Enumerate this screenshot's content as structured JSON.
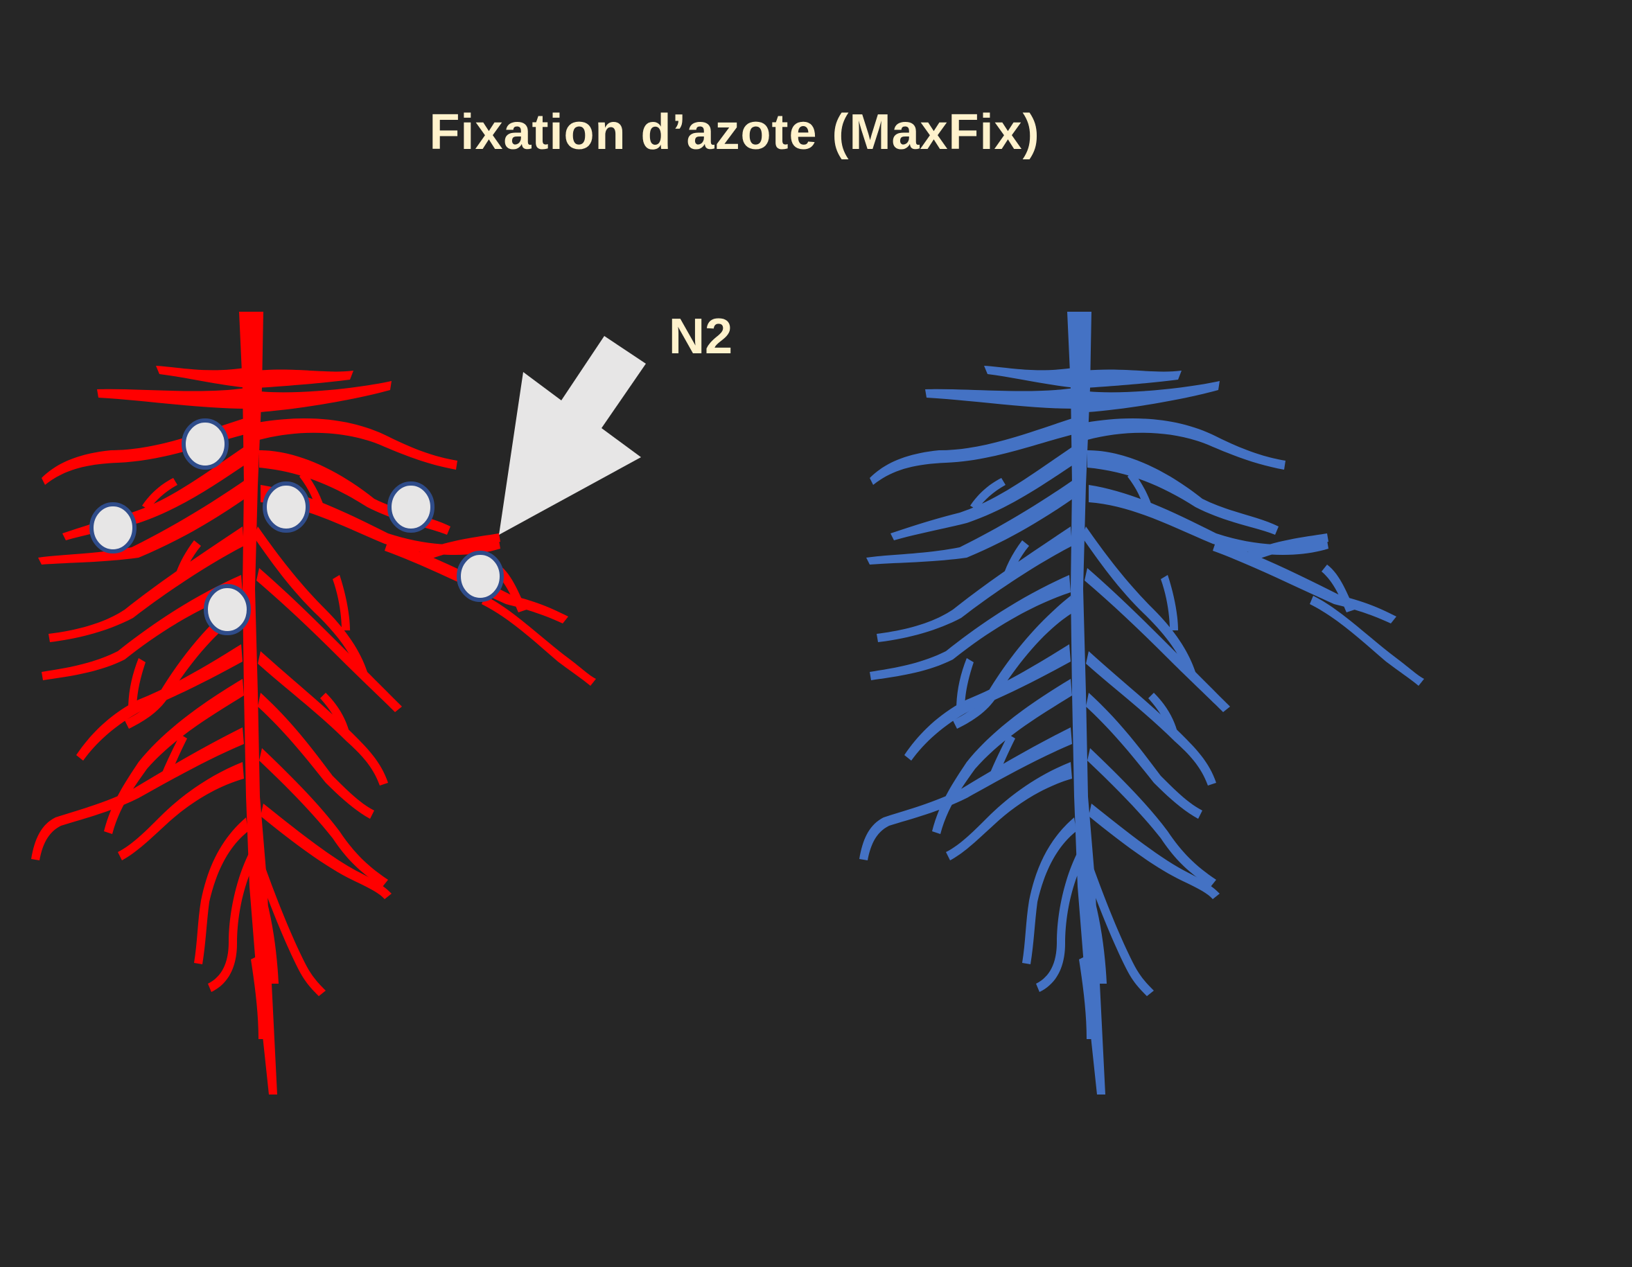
{
  "title": "Fixation d’azote (MaxFix)",
  "arrow_label": "N2",
  "colors": {
    "background": "#262626",
    "text": "#fff2cc",
    "root_left": "#ff0000",
    "root_right": "#4472c4",
    "nodule_fill": "#e7e6e6",
    "nodule_stroke": "#2f4c8a",
    "arrow": "#e7e6e6"
  },
  "icons": {
    "left_root": "root-system-with-nodules-icon",
    "right_root": "root-system-icon",
    "arrow": "arrow-down-left-icon"
  },
  "nodule_count": 6
}
